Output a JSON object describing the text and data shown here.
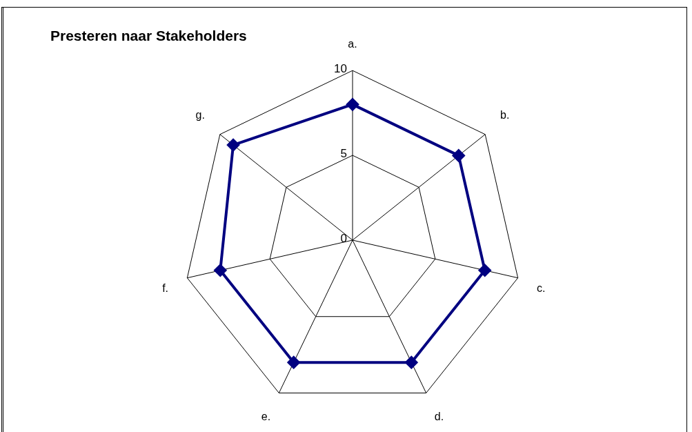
{
  "chart_data": {
    "type": "radar",
    "title": "Presteren naar Stakeholders",
    "categories": [
      "a.",
      "b.",
      "c.",
      "d.",
      "e.",
      "f.",
      "g."
    ],
    "series": [
      {
        "color": "#000080",
        "values": [
          8,
          8,
          8,
          8,
          8,
          8,
          9
        ]
      }
    ],
    "ylim": [
      0,
      10
    ],
    "yticks": [
      0,
      5,
      10
    ],
    "grid": true,
    "legend": false,
    "marker": "diamond",
    "line_style": "solid"
  }
}
